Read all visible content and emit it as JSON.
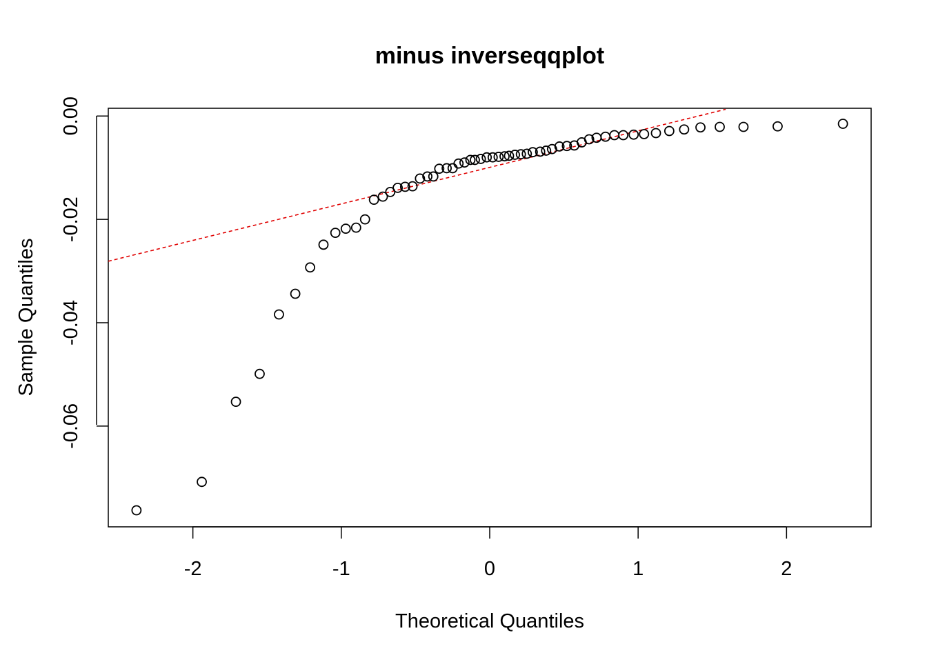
{
  "chart_data": {
    "type": "scatter",
    "title": "minus inverseqqplot",
    "xlabel": "Theoretical Quantiles",
    "ylabel": "Sample Quantiles",
    "xlim": [
      -2.57,
      2.57
    ],
    "ylim": [
      -0.0795,
      0.0015
    ],
    "x_ticks": [
      -2,
      -1,
      0,
      1,
      2
    ],
    "x_tick_labels": [
      "-2",
      "-1",
      "0",
      "1",
      "2"
    ],
    "y_ticks": [
      0.0,
      -0.02,
      -0.04,
      -0.06
    ],
    "y_tick_labels": [
      "0.00",
      "-0.02",
      "-0.04",
      "-0.06"
    ],
    "grid": false,
    "series": [
      {
        "kind": "points",
        "color": "#000000",
        "x": [
          -2.38,
          -1.94,
          -1.71,
          -1.55,
          -1.42,
          -1.31,
          -1.21,
          -1.12,
          -1.04,
          -0.97,
          -0.9,
          -0.84,
          -0.78,
          -0.72,
          -0.67,
          -0.62,
          -0.57,
          -0.52,
          -0.47,
          -0.42,
          -0.38,
          -0.34,
          -0.29,
          -0.25,
          -0.21,
          -0.17,
          -0.13,
          -0.1,
          -0.06,
          -0.02,
          0.02,
          0.06,
          0.1,
          0.13,
          0.17,
          0.21,
          0.25,
          0.29,
          0.34,
          0.38,
          0.42,
          0.47,
          0.52,
          0.57,
          0.62,
          0.67,
          0.72,
          0.78,
          0.84,
          0.9,
          0.97,
          1.04,
          1.12,
          1.21,
          1.31,
          1.42,
          1.55,
          1.71,
          1.94,
          2.38
        ],
        "y": [
          -0.0763,
          -0.0708,
          -0.0553,
          -0.0499,
          -0.0384,
          -0.0344,
          -0.0293,
          -0.0249,
          -0.0226,
          -0.0218,
          -0.0216,
          -0.02,
          -0.0162,
          -0.0156,
          -0.0147,
          -0.0139,
          -0.0137,
          -0.0136,
          -0.0121,
          -0.0117,
          -0.0117,
          -0.0102,
          -0.0101,
          -0.0101,
          -0.0092,
          -0.009,
          -0.0085,
          -0.0085,
          -0.0083,
          -0.008,
          -0.008,
          -0.0079,
          -0.0078,
          -0.0077,
          -0.0075,
          -0.0074,
          -0.0073,
          -0.007,
          -0.0069,
          -0.0067,
          -0.0064,
          -0.0059,
          -0.0058,
          -0.0057,
          -0.0051,
          -0.0045,
          -0.0042,
          -0.004,
          -0.0037,
          -0.0037,
          -0.0036,
          -0.0035,
          -0.0033,
          -0.0029,
          -0.0026,
          -0.0022,
          -0.0021,
          -0.0021,
          -0.002,
          -0.0015
        ]
      },
      {
        "kind": "reference-line",
        "color": "#e00000",
        "style": "dashed",
        "x": [
          -2.57,
          1.59
        ],
        "y": [
          -0.0281,
          0.0013
        ]
      }
    ]
  }
}
